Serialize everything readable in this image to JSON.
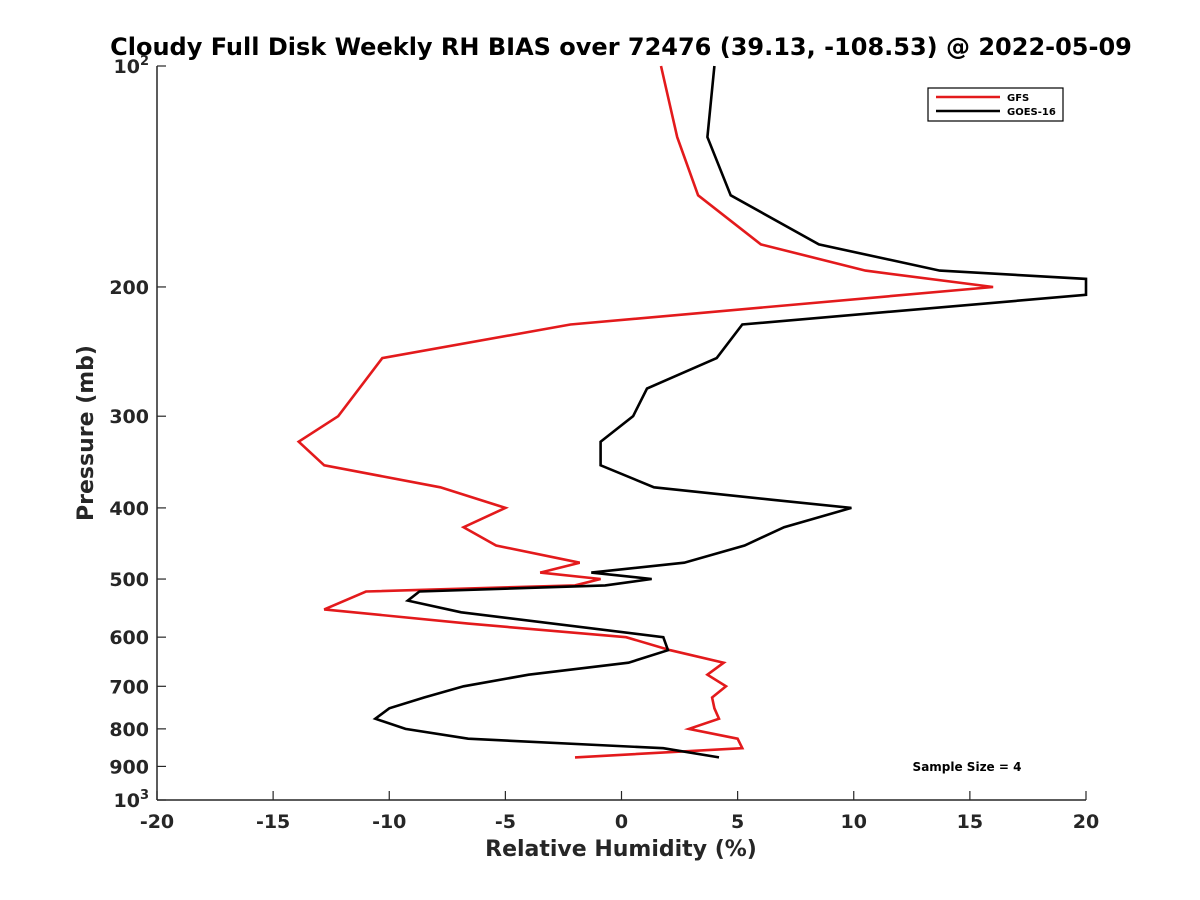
{
  "chart_data": {
    "type": "line",
    "title": "Cloudy Full Disk Weekly RH BIAS over 72476 (39.13, -108.53) @ 2022-05-09",
    "xlabel": "Relative Humidity (%)",
    "ylabel": "Pressure (mb)",
    "xlim": [
      -20,
      20
    ],
    "ylim": [
      100,
      1000
    ],
    "y_scale": "log",
    "y_reversed": true,
    "grid": false,
    "legend_position": "top-right",
    "x_ticks": [
      {
        "value": -20,
        "label": "-20"
      },
      {
        "value": -15,
        "label": "-15"
      },
      {
        "value": -10,
        "label": "-10"
      },
      {
        "value": -5,
        "label": "-5"
      },
      {
        "value": 0,
        "label": "0"
      },
      {
        "value": 5,
        "label": "5"
      },
      {
        "value": 10,
        "label": "10"
      },
      {
        "value": 15,
        "label": "15"
      },
      {
        "value": 20,
        "label": "20"
      }
    ],
    "y_ticks": [
      {
        "value": 100,
        "label": "10",
        "sup": "2"
      },
      {
        "value": 200,
        "label": "200",
        "sup": ""
      },
      {
        "value": 300,
        "label": "300",
        "sup": ""
      },
      {
        "value": 400,
        "label": "400",
        "sup": ""
      },
      {
        "value": 500,
        "label": "500",
        "sup": ""
      },
      {
        "value": 600,
        "label": "600",
        "sup": ""
      },
      {
        "value": 700,
        "label": "700",
        "sup": ""
      },
      {
        "value": 800,
        "label": "800",
        "sup": ""
      },
      {
        "value": 900,
        "label": "900",
        "sup": ""
      },
      {
        "value": 1000,
        "label": "10",
        "sup": "3"
      }
    ],
    "series": [
      {
        "name": "GFS",
        "color": "#e31a1c",
        "points": [
          {
            "x": 1.7,
            "y": 100
          },
          {
            "x": 2.4,
            "y": 125
          },
          {
            "x": 3.3,
            "y": 150
          },
          {
            "x": 6.0,
            "y": 175
          },
          {
            "x": 10.5,
            "y": 190
          },
          {
            "x": 16.0,
            "y": 200
          },
          {
            "x": -2.2,
            "y": 225
          },
          {
            "x": -10.3,
            "y": 250
          },
          {
            "x": -12.2,
            "y": 300
          },
          {
            "x": -13.9,
            "y": 325
          },
          {
            "x": -12.8,
            "y": 350
          },
          {
            "x": -7.8,
            "y": 375
          },
          {
            "x": -5.0,
            "y": 400
          },
          {
            "x": -6.8,
            "y": 425
          },
          {
            "x": -5.4,
            "y": 450
          },
          {
            "x": -1.8,
            "y": 475
          },
          {
            "x": -3.5,
            "y": 490
          },
          {
            "x": -0.9,
            "y": 500
          },
          {
            "x": -2.0,
            "y": 510
          },
          {
            "x": -11.0,
            "y": 520
          },
          {
            "x": -12.8,
            "y": 550
          },
          {
            "x": -6.6,
            "y": 575
          },
          {
            "x": 0.2,
            "y": 600
          },
          {
            "x": 2.1,
            "y": 625
          },
          {
            "x": 4.4,
            "y": 650
          },
          {
            "x": 3.7,
            "y": 675
          },
          {
            "x": 4.5,
            "y": 700
          },
          {
            "x": 3.9,
            "y": 725
          },
          {
            "x": 4.0,
            "y": 750
          },
          {
            "x": 4.2,
            "y": 775
          },
          {
            "x": 2.9,
            "y": 800
          },
          {
            "x": 5.0,
            "y": 825
          },
          {
            "x": 5.2,
            "y": 850
          },
          {
            "x": -2.0,
            "y": 875
          }
        ]
      },
      {
        "name": "GOES-16",
        "color": "#000000",
        "points": [
          {
            "x": 4.0,
            "y": 100
          },
          {
            "x": 3.7,
            "y": 125
          },
          {
            "x": 4.7,
            "y": 150
          },
          {
            "x": 8.5,
            "y": 175
          },
          {
            "x": 13.7,
            "y": 190
          },
          {
            "x": 20.0,
            "y": 195
          },
          {
            "x": 20.0,
            "y": 205
          },
          {
            "x": 5.2,
            "y": 225
          },
          {
            "x": 4.1,
            "y": 250
          },
          {
            "x": 1.1,
            "y": 275
          },
          {
            "x": 0.5,
            "y": 300
          },
          {
            "x": -0.9,
            "y": 325
          },
          {
            "x": -0.9,
            "y": 350
          },
          {
            "x": 1.4,
            "y": 375
          },
          {
            "x": 6.5,
            "y": 390
          },
          {
            "x": 9.9,
            "y": 400
          },
          {
            "x": 7.0,
            "y": 425
          },
          {
            "x": 5.3,
            "y": 450
          },
          {
            "x": 2.7,
            "y": 475
          },
          {
            "x": -1.3,
            "y": 490
          },
          {
            "x": 1.3,
            "y": 500
          },
          {
            "x": -0.7,
            "y": 510
          },
          {
            "x": -8.7,
            "y": 520
          },
          {
            "x": -9.2,
            "y": 535
          },
          {
            "x": -6.9,
            "y": 555
          },
          {
            "x": 1.8,
            "y": 600
          },
          {
            "x": 2.0,
            "y": 625
          },
          {
            "x": 0.3,
            "y": 650
          },
          {
            "x": -4.0,
            "y": 675
          },
          {
            "x": -6.8,
            "y": 700
          },
          {
            "x": -8.5,
            "y": 725
          },
          {
            "x": -10.0,
            "y": 750
          },
          {
            "x": -10.6,
            "y": 775
          },
          {
            "x": -9.3,
            "y": 800
          },
          {
            "x": -6.6,
            "y": 825
          },
          {
            "x": 1.8,
            "y": 850
          },
          {
            "x": 4.2,
            "y": 875
          }
        ]
      }
    ],
    "legend": [
      {
        "label": "GFS",
        "color": "#e31a1c"
      },
      {
        "label": "GOES-16",
        "color": "#000000"
      }
    ],
    "annotation": "Sample Size = 4"
  }
}
